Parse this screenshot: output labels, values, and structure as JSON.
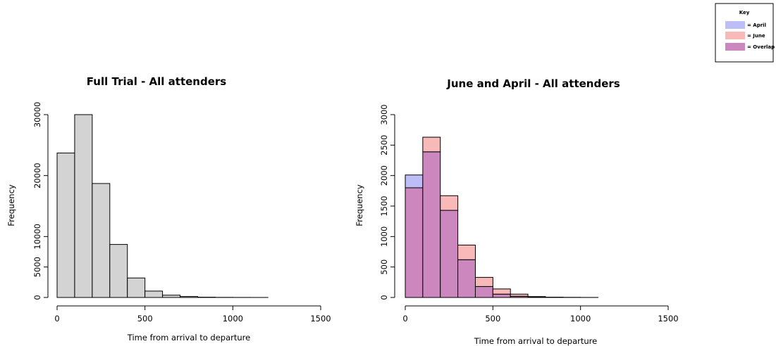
{
  "key": {
    "title": "Key",
    "items": [
      {
        "label": "= April",
        "color": "#bdbdf7"
      },
      {
        "label": "= June",
        "color": "#f9b9b9"
      },
      {
        "label": "= Overlap",
        "color": "#cc88be"
      }
    ]
  },
  "chart_data": [
    {
      "type": "bar",
      "title": "Full Trial - All attenders",
      "xlabel": "Time from arrival to departure",
      "ylabel": "Frequency",
      "xlim": [
        0,
        1500
      ],
      "ylim": [
        0,
        30000
      ],
      "xticks": [
        0,
        500,
        1000,
        1500
      ],
      "yticks": [
        0,
        5000,
        10000,
        20000,
        30000
      ],
      "bin_width": 100,
      "bar_color": "#d3d3d3",
      "series": [
        {
          "values": [
            {
              "x0": 0,
              "x1": 100,
              "y": 23700
            },
            {
              "x0": 100,
              "x1": 200,
              "y": 30000
            },
            {
              "x0": 200,
              "x1": 300,
              "y": 18700
            },
            {
              "x0": 300,
              "x1": 400,
              "y": 8700
            },
            {
              "x0": 400,
              "x1": 500,
              "y": 3200
            },
            {
              "x0": 500,
              "x1": 600,
              "y": 1050
            },
            {
              "x0": 600,
              "x1": 700,
              "y": 380
            },
            {
              "x0": 700,
              "x1": 800,
              "y": 160
            },
            {
              "x0": 800,
              "x1": 900,
              "y": 50
            },
            {
              "x0": 900,
              "x1": 1000,
              "y": 20
            },
            {
              "x0": 1000,
              "x1": 1100,
              "y": 10
            },
            {
              "x0": 1100,
              "x1": 1200,
              "y": 5
            }
          ]
        }
      ]
    },
    {
      "type": "bar",
      "title": "June and April - All attenders",
      "xlabel": "Time from arrival to departure",
      "ylabel": "Frequency",
      "xlim": [
        0,
        1500
      ],
      "ylim": [
        0,
        3000
      ],
      "xticks": [
        0,
        500,
        1000,
        1500
      ],
      "yticks": [
        0,
        500,
        1000,
        1500,
        2000,
        2500,
        3000
      ],
      "bin_width": 100,
      "series": [
        {
          "name": "April",
          "color": "#bdbdf7",
          "values": [
            {
              "x0": 0,
              "x1": 100,
              "y": 2010
            },
            {
              "x0": 100,
              "x1": 200,
              "y": 2390
            },
            {
              "x0": 200,
              "x1": 300,
              "y": 1430
            },
            {
              "x0": 300,
              "x1": 400,
              "y": 620
            },
            {
              "x0": 400,
              "x1": 500,
              "y": 180
            },
            {
              "x0": 500,
              "x1": 600,
              "y": 55
            },
            {
              "x0": 600,
              "x1": 700,
              "y": 20
            },
            {
              "x0": 700,
              "x1": 800,
              "y": 8
            },
            {
              "x0": 800,
              "x1": 900,
              "y": 3
            },
            {
              "x0": 900,
              "x1": 1000,
              "y": 1
            },
            {
              "x0": 1000,
              "x1": 1100,
              "y": 1
            }
          ]
        },
        {
          "name": "June",
          "color": "#f9b9b9",
          "values": [
            {
              "x0": 0,
              "x1": 100,
              "y": 1800
            },
            {
              "x0": 100,
              "x1": 200,
              "y": 2630
            },
            {
              "x0": 200,
              "x1": 300,
              "y": 1670
            },
            {
              "x0": 300,
              "x1": 400,
              "y": 860
            },
            {
              "x0": 400,
              "x1": 500,
              "y": 330
            },
            {
              "x0": 500,
              "x1": 600,
              "y": 140
            },
            {
              "x0": 600,
              "x1": 700,
              "y": 55
            },
            {
              "x0": 700,
              "x1": 800,
              "y": 15
            },
            {
              "x0": 800,
              "x1": 900,
              "y": 5
            },
            {
              "x0": 900,
              "x1": 1000,
              "y": 2
            },
            {
              "x0": 1000,
              "x1": 1100,
              "y": 1
            }
          ]
        }
      ],
      "overlap_color": "#cc88be"
    }
  ]
}
